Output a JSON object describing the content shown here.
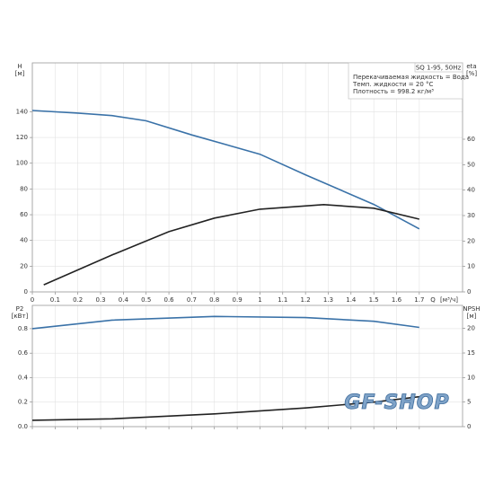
{
  "chart_data": [
    {
      "type": "line",
      "xlabel": [
        "Q",
        "[м³/ч]"
      ],
      "ylabel": [
        "H",
        "[м]"
      ],
      "y2label": [
        "eta",
        "[%]"
      ],
      "annotations": [
        "SQ 1-95, 50Hz",
        "Перекачиваемая жидкость = Вода",
        "Темп. жидкости = 20 °C",
        "Плотность = 998.2 кг/м³"
      ],
      "xlim": [
        0,
        1.89
      ],
      "xticks": [
        0,
        0.1,
        0.2,
        0.3,
        0.4,
        0.5,
        0.6,
        0.7,
        0.8,
        0.9,
        1.0,
        1.1,
        1.2,
        1.3,
        1.4,
        1.5,
        1.6,
        1.7
      ],
      "ylim": [
        0,
        178
      ],
      "yticks": [
        0,
        20,
        40,
        60,
        80,
        100,
        120,
        140
      ],
      "y2lim": [
        0,
        90
      ],
      "y2ticks": [
        0,
        10,
        20,
        30,
        40,
        50,
        60
      ],
      "grid": true,
      "series": [
        {
          "name": "H",
          "color": "#3a72a8",
          "x": [
            0,
            0.2,
            0.35,
            0.5,
            0.7,
            1.0,
            1.2,
            1.5,
            1.7
          ],
          "values": [
            141,
            139,
            137,
            133,
            122,
            107,
            91,
            68,
            49
          ]
        },
        {
          "name": "eta",
          "color": "#222222",
          "axis": "y2",
          "x": [
            0.05,
            0.35,
            0.6,
            0.8,
            1.0,
            1.28,
            1.5,
            1.7
          ],
          "values": [
            2.8,
            14.5,
            23.7,
            29,
            32.5,
            34.3,
            32.9,
            28.6
          ]
        }
      ]
    },
    {
      "type": "line",
      "ylabel": [
        "P2",
        "[кВт]"
      ],
      "y2label": [
        "NPSH",
        "[м]"
      ],
      "annotations": [
        "GF-SHOP"
      ],
      "xlim": [
        0,
        1.89
      ],
      "ylim": [
        0,
        0.99
      ],
      "yticks": [
        {
          "value": 0,
          "label": "0.0"
        },
        0.2,
        0.4,
        0.6,
        0.8
      ],
      "y2lim": [
        0,
        24.7
      ],
      "y2ticks": [
        0,
        5,
        10,
        15,
        20
      ],
      "grid": true,
      "series": [
        {
          "name": "P2",
          "color": "#3a72a8",
          "x": [
            0,
            0.35,
            0.8,
            1.2,
            1.5,
            1.7
          ],
          "values": [
            0.8,
            0.87,
            0.9,
            0.89,
            0.86,
            0.81
          ]
        },
        {
          "name": "NPSH",
          "color": "#222222",
          "axis": "y2",
          "x": [
            0,
            0.35,
            0.8,
            1.2,
            1.5,
            1.7
          ],
          "values": [
            1.3,
            1.6,
            2.6,
            3.8,
            5.0,
            6.1
          ]
        }
      ]
    }
  ]
}
